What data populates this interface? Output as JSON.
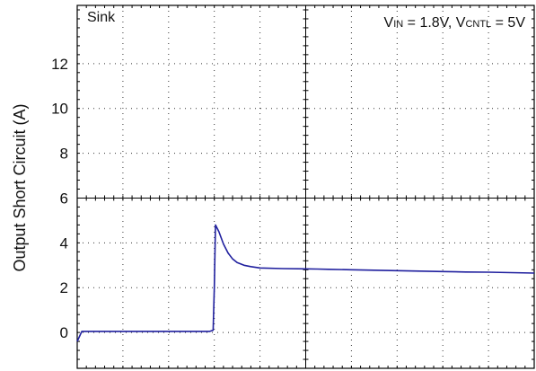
{
  "chart_data": {
    "type": "line",
    "ylabel": "Output Short Circuit (A)",
    "xlabel": "",
    "ylim": [
      -1.6,
      14.6
    ],
    "yticks": [
      0,
      2,
      4,
      6,
      8,
      10,
      12
    ],
    "x_divisions": 10,
    "grid": true,
    "grid_style": "dotted",
    "annotations": {
      "top_left": "Sink",
      "top_right": {
        "v1": "V",
        "v1_sub": "IN",
        "v1_value": " = 1.8V, ",
        "v2": "V",
        "v2_sub": "CNTL",
        "v2_value": " = 5V"
      }
    },
    "series": [
      {
        "color": "#1f1f9e",
        "x": [
          0,
          0.2,
          1,
          2,
          3,
          5.8,
          5.95,
          6.0,
          6.05,
          6.2,
          6.4,
          6.6,
          6.8,
          7.0,
          7.3,
          7.6,
          8,
          9,
          10,
          10.5,
          11,
          12,
          13,
          14,
          15,
          16,
          17,
          18,
          19,
          20
        ],
        "y": [
          -0.4,
          0.05,
          0.05,
          0.05,
          0.05,
          0.05,
          0.1,
          2.0,
          4.8,
          4.5,
          3.95,
          3.55,
          3.28,
          3.12,
          3.0,
          2.94,
          2.88,
          2.85,
          2.84,
          2.83,
          2.82,
          2.8,
          2.78,
          2.76,
          2.74,
          2.72,
          2.7,
          2.69,
          2.67,
          2.65
        ]
      }
    ],
    "x_range": [
      0,
      20
    ]
  }
}
